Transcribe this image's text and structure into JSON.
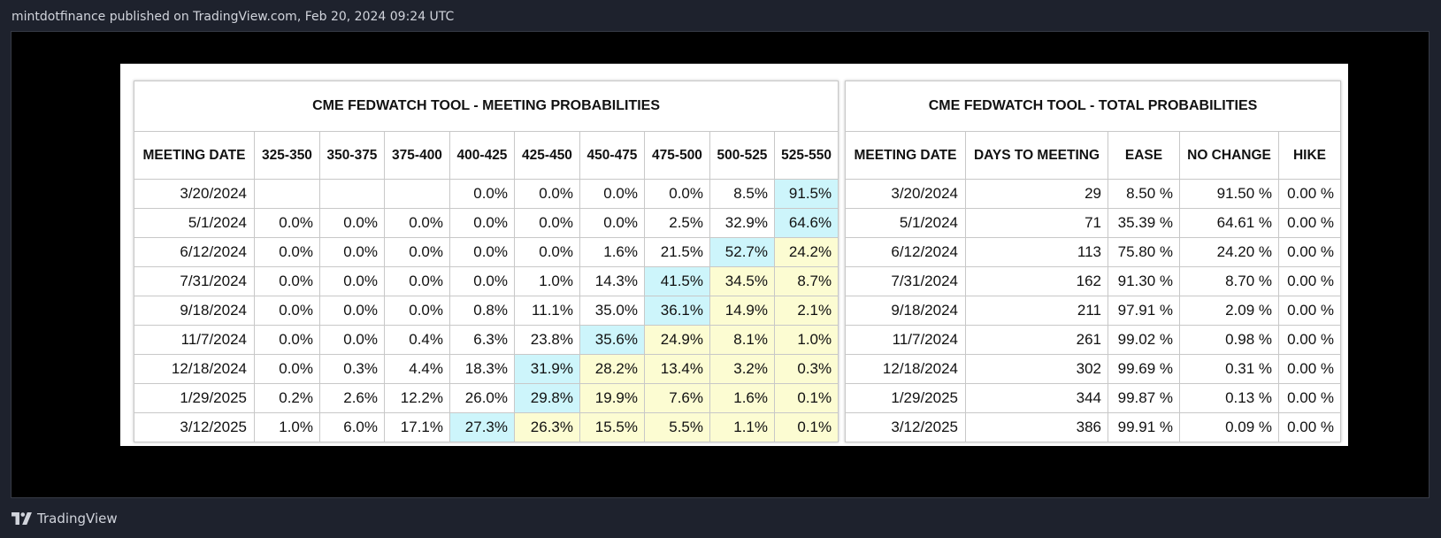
{
  "header": {
    "published": "mintdotfinance published on TradingView.com, Feb 20, 2024 09:24 UTC"
  },
  "footer": {
    "brand": "TradingView",
    "logo_icon": "tradingview-logo-icon"
  },
  "colors": {
    "page_bg": "#1e222d",
    "canvas_bg": "#000000",
    "highlight_max": "#cdf5fb",
    "highlight_band": "#fcfcd2"
  },
  "meeting_table": {
    "title": "CME FEDWATCH TOOL - MEETING PROBABILITIES",
    "columns": [
      "MEETING DATE",
      "325-350",
      "350-375",
      "375-400",
      "400-425",
      "425-450",
      "450-475",
      "475-500",
      "500-525",
      "525-550"
    ],
    "rows": [
      {
        "cells": [
          "3/20/2024",
          "",
          "",
          "",
          "0.0%",
          "0.0%",
          "0.0%",
          "0.0%",
          "8.5%",
          "91.5%"
        ],
        "hl": [
          "",
          "",
          "",
          "",
          "",
          "",
          "",
          "",
          "",
          "b"
        ]
      },
      {
        "cells": [
          "5/1/2024",
          "0.0%",
          "0.0%",
          "0.0%",
          "0.0%",
          "0.0%",
          "0.0%",
          "2.5%",
          "32.9%",
          "64.6%"
        ],
        "hl": [
          "",
          "",
          "",
          "",
          "",
          "",
          "",
          "",
          "",
          "b"
        ]
      },
      {
        "cells": [
          "6/12/2024",
          "0.0%",
          "0.0%",
          "0.0%",
          "0.0%",
          "0.0%",
          "1.6%",
          "21.5%",
          "52.7%",
          "24.2%"
        ],
        "hl": [
          "",
          "",
          "",
          "",
          "",
          "",
          "",
          "",
          "b",
          "y"
        ]
      },
      {
        "cells": [
          "7/31/2024",
          "0.0%",
          "0.0%",
          "0.0%",
          "0.0%",
          "1.0%",
          "14.3%",
          "41.5%",
          "34.5%",
          "8.7%"
        ],
        "hl": [
          "",
          "",
          "",
          "",
          "",
          "",
          "",
          "b",
          "y",
          "y"
        ]
      },
      {
        "cells": [
          "9/18/2024",
          "0.0%",
          "0.0%",
          "0.0%",
          "0.8%",
          "11.1%",
          "35.0%",
          "36.1%",
          "14.9%",
          "2.1%"
        ],
        "hl": [
          "",
          "",
          "",
          "",
          "",
          "",
          "",
          "b",
          "y",
          "y"
        ]
      },
      {
        "cells": [
          "11/7/2024",
          "0.0%",
          "0.0%",
          "0.4%",
          "6.3%",
          "23.8%",
          "35.6%",
          "24.9%",
          "8.1%",
          "1.0%"
        ],
        "hl": [
          "",
          "",
          "",
          "",
          "",
          "",
          "b",
          "y",
          "y",
          "y"
        ]
      },
      {
        "cells": [
          "12/18/2024",
          "0.0%",
          "0.3%",
          "4.4%",
          "18.3%",
          "31.9%",
          "28.2%",
          "13.4%",
          "3.2%",
          "0.3%"
        ],
        "hl": [
          "",
          "",
          "",
          "",
          "",
          "b",
          "y",
          "y",
          "y",
          "y"
        ]
      },
      {
        "cells": [
          "1/29/2025",
          "0.2%",
          "2.6%",
          "12.2%",
          "26.0%",
          "29.8%",
          "19.9%",
          "7.6%",
          "1.6%",
          "0.1%"
        ],
        "hl": [
          "",
          "",
          "",
          "",
          "",
          "b",
          "y",
          "y",
          "y",
          "y"
        ]
      },
      {
        "cells": [
          "3/12/2025",
          "1.0%",
          "6.0%",
          "17.1%",
          "27.3%",
          "26.3%",
          "15.5%",
          "5.5%",
          "1.1%",
          "0.1%"
        ],
        "hl": [
          "",
          "",
          "",
          "",
          "b",
          "y",
          "y",
          "y",
          "y",
          "y"
        ]
      }
    ]
  },
  "total_table": {
    "title": "CME FEDWATCH TOOL - TOTAL PROBABILITIES",
    "columns": [
      "MEETING DATE",
      "DAYS TO MEETING",
      "EASE",
      "NO CHANGE",
      "HIKE"
    ],
    "rows": [
      [
        "3/20/2024",
        "29",
        "8.50 %",
        "91.50 %",
        "0.00 %"
      ],
      [
        "5/1/2024",
        "71",
        "35.39 %",
        "64.61 %",
        "0.00 %"
      ],
      [
        "6/12/2024",
        "113",
        "75.80 %",
        "24.20 %",
        "0.00 %"
      ],
      [
        "7/31/2024",
        "162",
        "91.30 %",
        "8.70 %",
        "0.00 %"
      ],
      [
        "9/18/2024",
        "211",
        "97.91 %",
        "2.09 %",
        "0.00 %"
      ],
      [
        "11/7/2024",
        "261",
        "99.02 %",
        "0.98 %",
        "0.00 %"
      ],
      [
        "12/18/2024",
        "302",
        "99.69 %",
        "0.31 %",
        "0.00 %"
      ],
      [
        "1/29/2025",
        "344",
        "99.87 %",
        "0.13 %",
        "0.00 %"
      ],
      [
        "3/12/2025",
        "386",
        "99.91 %",
        "0.09 %",
        "0.00 %"
      ]
    ]
  }
}
